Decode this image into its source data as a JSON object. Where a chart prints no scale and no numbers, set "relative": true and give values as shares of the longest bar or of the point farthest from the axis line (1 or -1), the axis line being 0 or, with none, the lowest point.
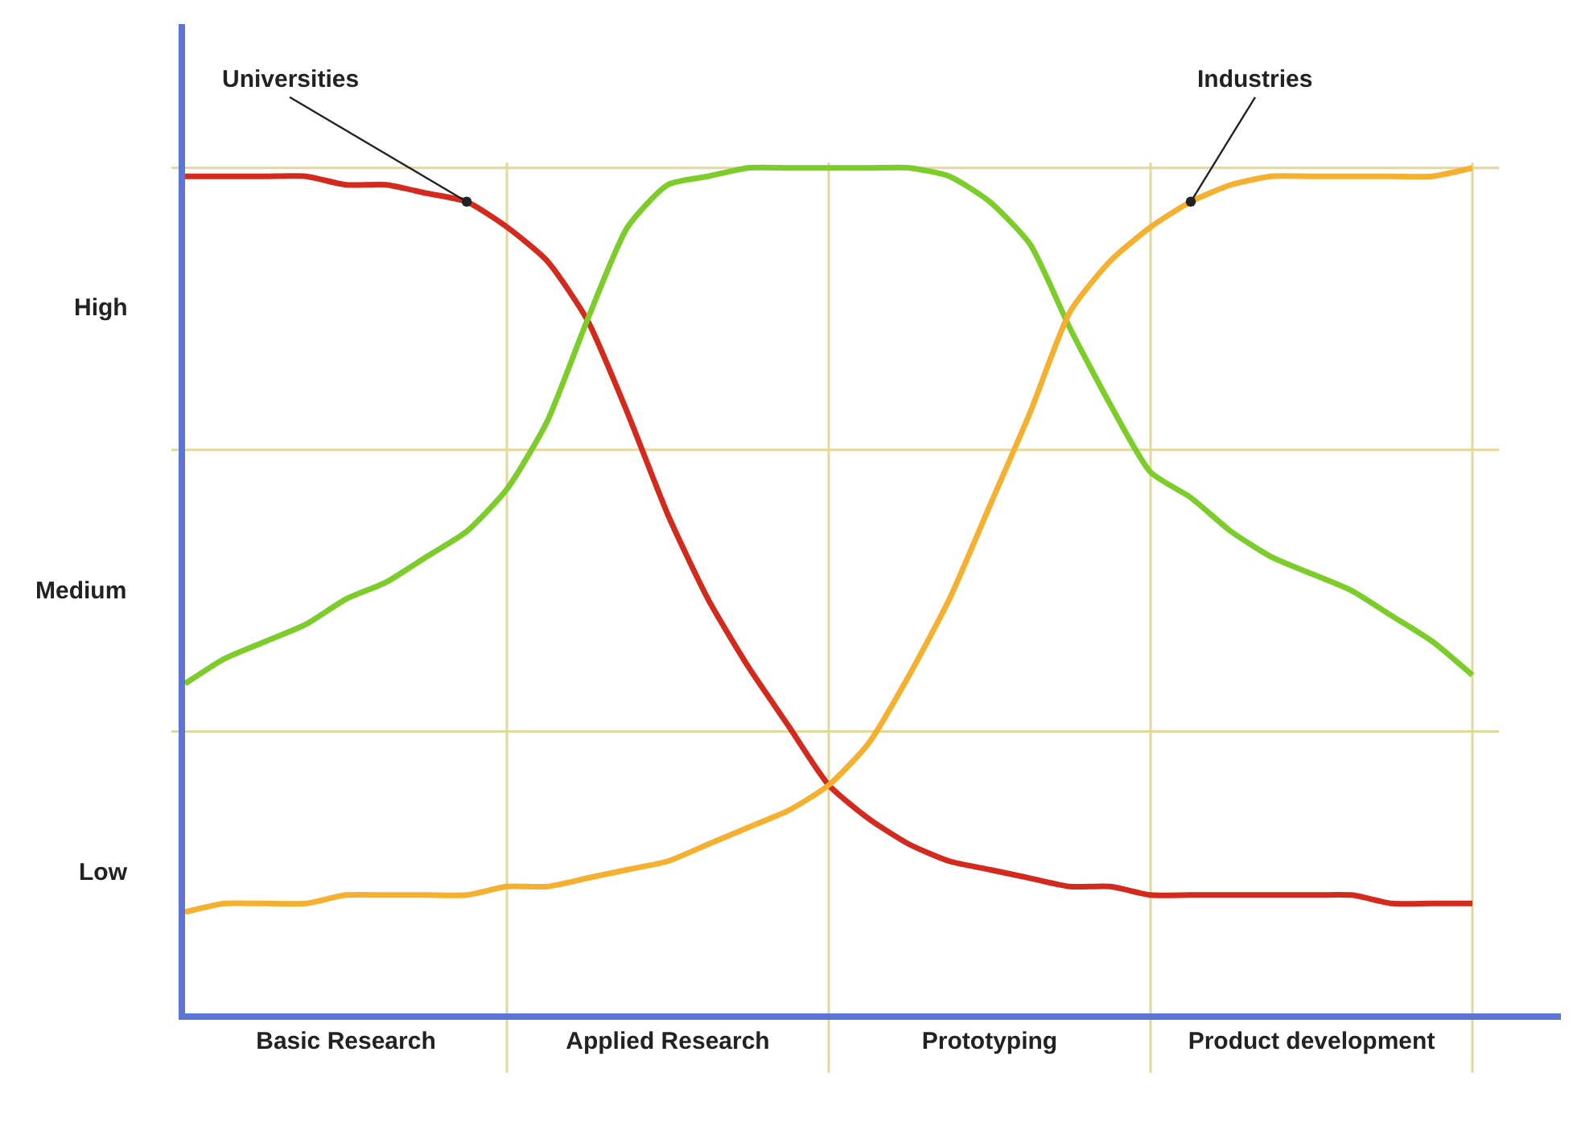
{
  "chart_data": {
    "type": "line",
    "relative": true,
    "categories": [
      null,
      null,
      null,
      null,
      "Basic Research",
      null,
      null,
      null,
      null,
      null,
      null,
      null,
      "Applied Research",
      null,
      null,
      null,
      null,
      null,
      null,
      null,
      "Prototyping",
      null,
      null,
      null,
      null,
      null,
      null,
      null,
      "Product development",
      null,
      null,
      null,
      null
    ],
    "grid": true,
    "legend": false,
    "marker": "none",
    "line_style": "solid",
    "series": [
      {
        "name": "Universities",
        "color": "#d42a1e",
        "values": [
          0.99,
          0.99,
          0.99,
          0.99,
          0.98,
          0.98,
          0.97,
          0.96,
          0.93,
          0.89,
          0.82,
          0.71,
          0.59,
          0.49,
          0.41,
          0.34,
          0.27,
          0.23,
          0.2,
          0.18,
          0.17,
          0.16,
          0.15,
          0.15,
          0.14,
          0.14,
          0.14,
          0.14,
          0.14,
          0.14,
          0.13,
          0.13,
          0.13
        ]
      },
      {
        "color": "#7ccc2a",
        "values": [
          0.39,
          0.42,
          0.44,
          0.46,
          0.49,
          0.51,
          0.54,
          0.57,
          0.62,
          0.7,
          0.82,
          0.93,
          0.98,
          0.99,
          1.0,
          1.0,
          1.0,
          1.0,
          1.0,
          0.99,
          0.96,
          0.91,
          0.81,
          0.72,
          0.64,
          0.61,
          0.57,
          0.54,
          0.52,
          0.5,
          0.47,
          0.44,
          0.4
        ]
      },
      {
        "name": "Industries",
        "color": "#f5b030",
        "values": [
          0.12,
          0.13,
          0.13,
          0.13,
          0.14,
          0.14,
          0.14,
          0.14,
          0.15,
          0.15,
          0.16,
          0.17,
          0.18,
          0.2,
          0.22,
          0.24,
          0.27,
          0.32,
          0.4,
          0.49,
          0.6,
          0.71,
          0.83,
          0.89,
          0.93,
          0.96,
          0.98,
          0.99,
          0.99,
          0.99,
          0.99,
          0.99,
          1.0
        ]
      }
    ],
    "annotations": [
      "High",
      "Medium",
      "Low"
    ]
  }
}
